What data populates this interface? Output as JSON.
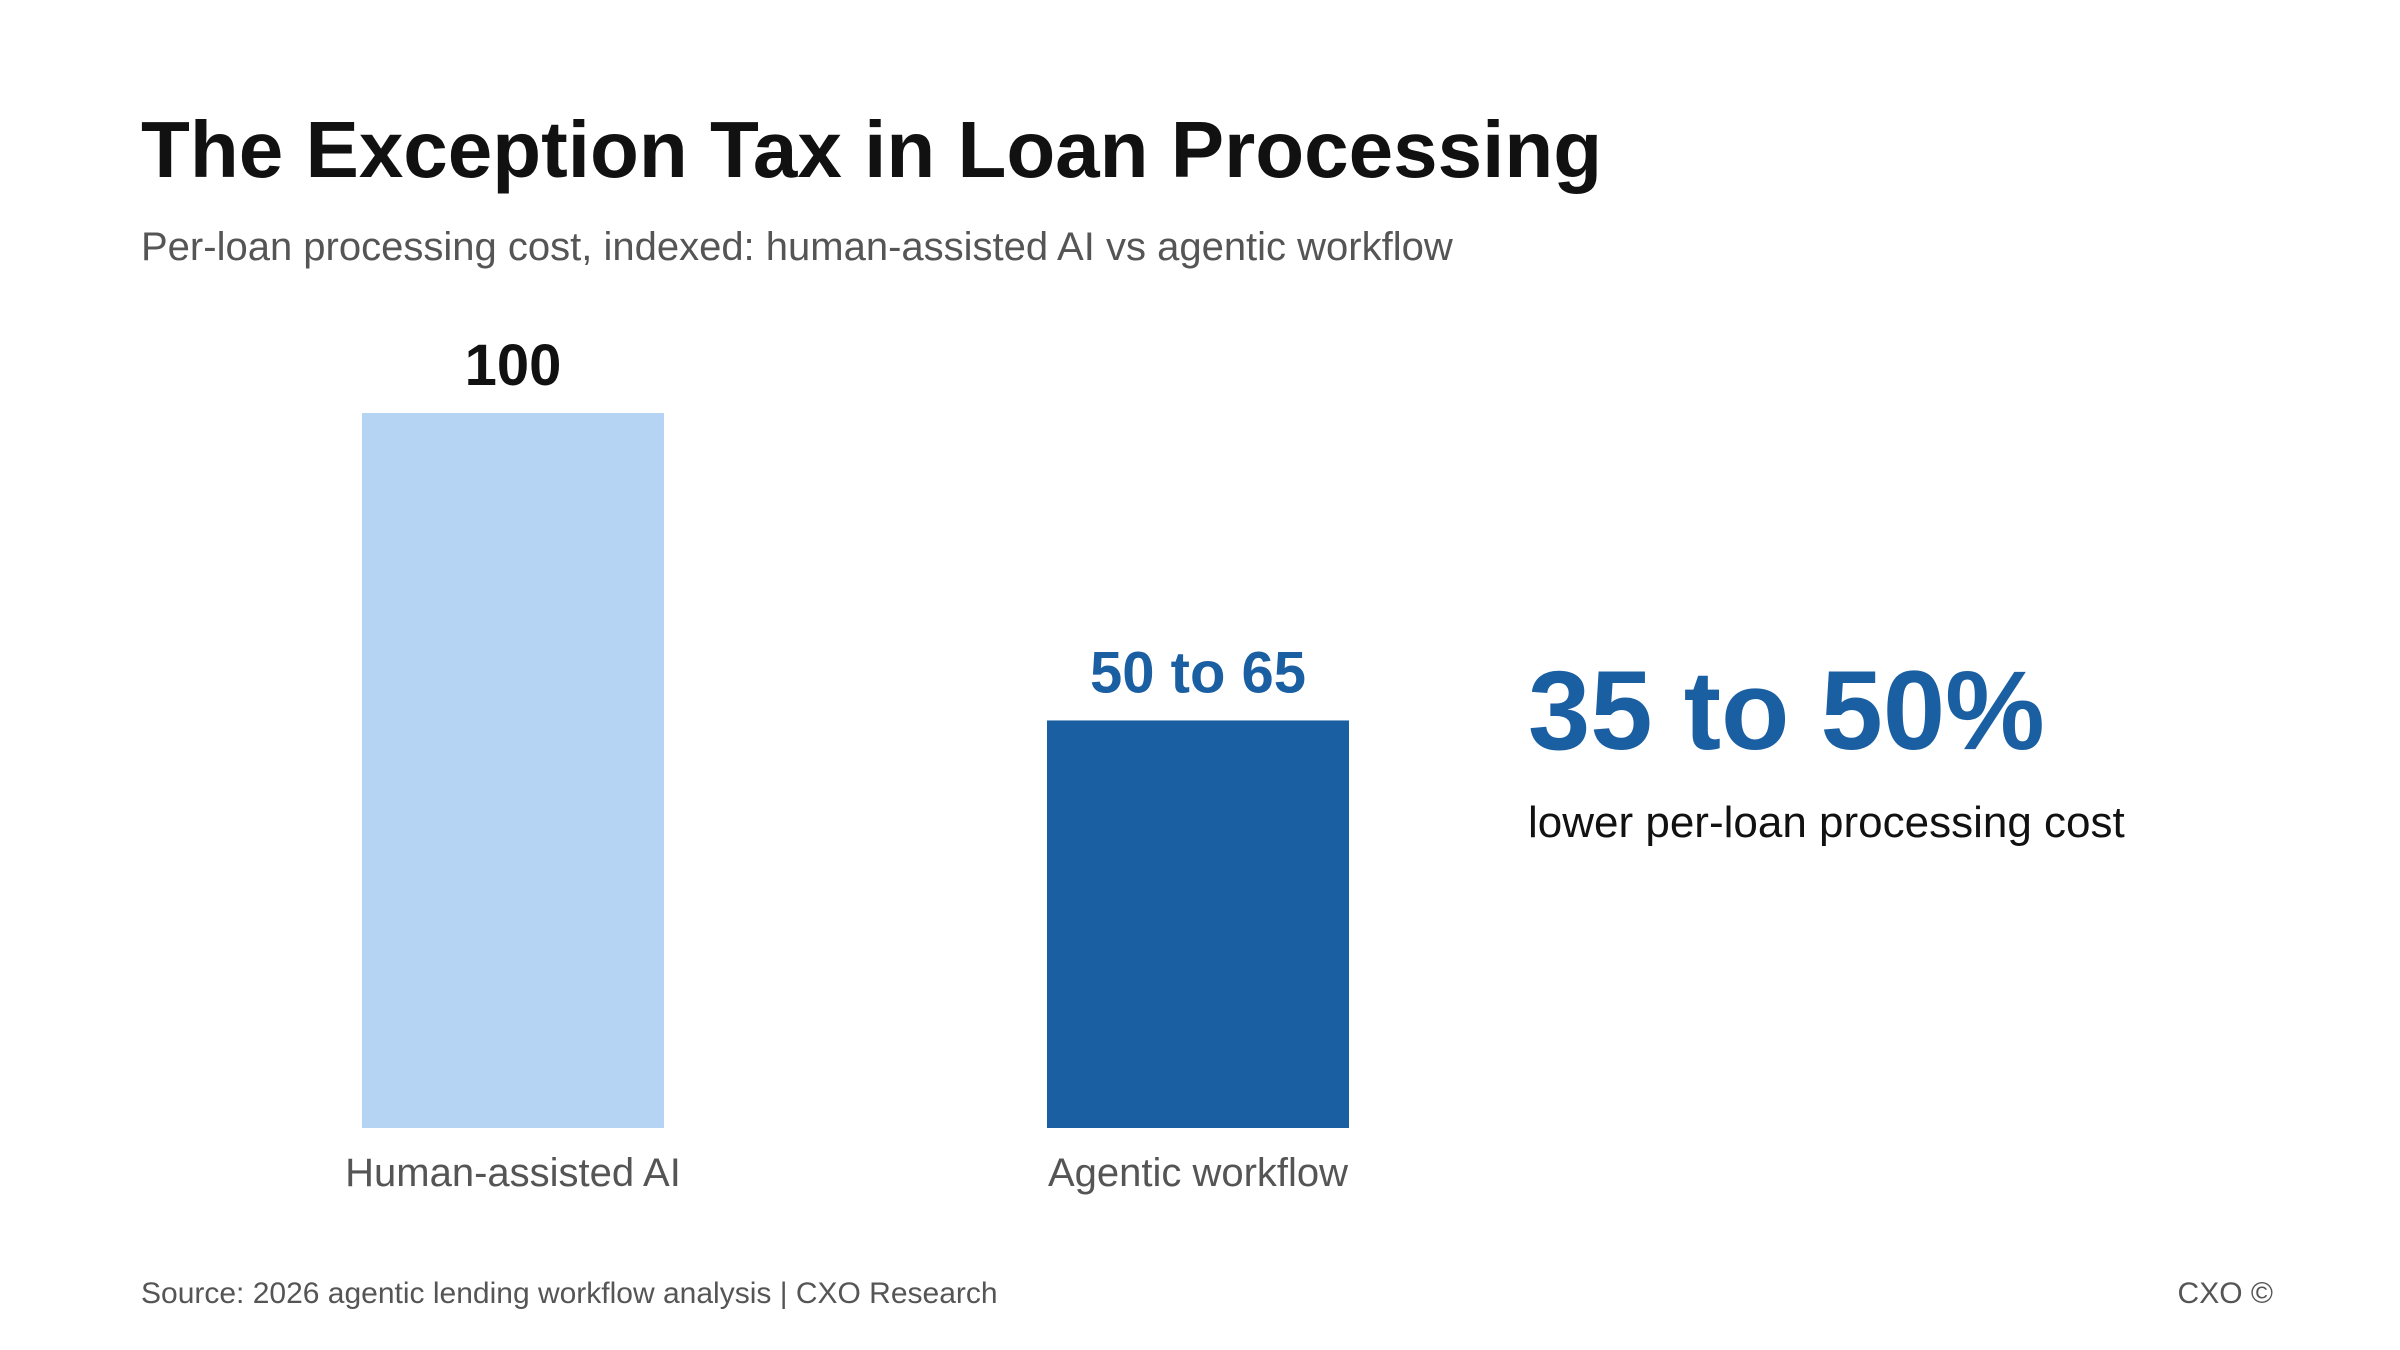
{
  "title": "The Exception Tax in Loan Processing",
  "subtitle": "Per-loan processing cost, indexed: human-assisted AI vs agentic workflow",
  "chart_data": {
    "type": "bar",
    "categories": [
      "Human-assisted AI",
      "Agentic workflow"
    ],
    "values": [
      100,
      57
    ],
    "value_ranges": [
      [
        100,
        100
      ],
      [
        50,
        65
      ]
    ],
    "data_labels": [
      "100",
      "50 to 65"
    ],
    "colors": [
      "#b5d3f2",
      "#1b5fa3"
    ],
    "label_colors": [
      "#111111",
      "#1b5fa3"
    ],
    "ylim": [
      0,
      100
    ],
    "grid": false,
    "legend": "none"
  },
  "callout": {
    "value": "35 to 50%",
    "label": "lower per-loan processing cost",
    "color": "#1b5fa3"
  },
  "footer": {
    "source": "Source: 2026 agentic lending workflow analysis | CXO Research",
    "brand": "CXO ©"
  }
}
